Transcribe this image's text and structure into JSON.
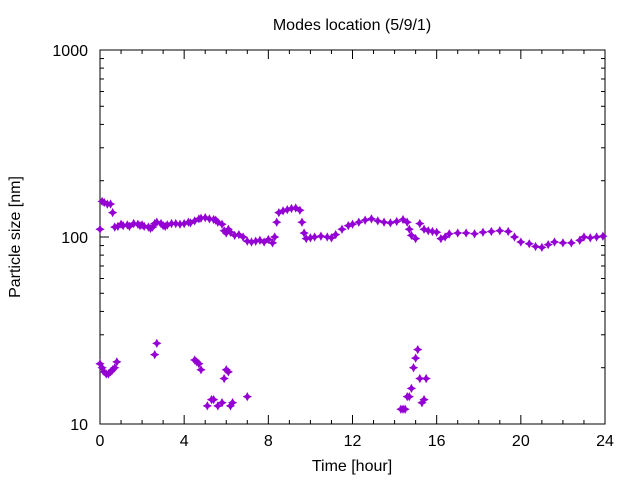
{
  "chart_data": {
    "type": "scatter",
    "title": "Modes location (5/9/1)",
    "xlabel": "Time [hour]",
    "ylabel": "Particle size [nm]",
    "x_range": [
      0,
      24
    ],
    "y_range": [
      10,
      1000
    ],
    "y_scale": "log",
    "x_ticks": [
      0,
      4,
      8,
      12,
      16,
      20,
      24
    ],
    "x_tick_labels": [
      "0",
      "4",
      "8",
      "12",
      "16",
      "20",
      "24"
    ],
    "y_ticks": [
      10,
      100,
      1000
    ],
    "y_tick_labels": [
      "10",
      "100",
      "1000"
    ],
    "grid": false,
    "marker_color": "#9400d3",
    "series": [
      {
        "points": [
          [
            0.0,
            110
          ],
          [
            0.1,
            155
          ],
          [
            0.2,
            153
          ],
          [
            0.35,
            150
          ],
          [
            0.5,
            150
          ],
          [
            0.6,
            135
          ],
          [
            0.7,
            113
          ],
          [
            0.85,
            114
          ],
          [
            1.0,
            117
          ],
          [
            1.1,
            115
          ],
          [
            1.3,
            116
          ],
          [
            1.4,
            114
          ],
          [
            1.6,
            118
          ],
          [
            1.8,
            117
          ],
          [
            1.9,
            115
          ],
          [
            2.0,
            116
          ],
          [
            2.1,
            114
          ],
          [
            2.3,
            113
          ],
          [
            2.4,
            111
          ],
          [
            2.5,
            113
          ],
          [
            2.6,
            118
          ],
          [
            2.7,
            120
          ],
          [
            2.9,
            118
          ],
          [
            3.0,
            115
          ],
          [
            3.1,
            114
          ],
          [
            3.2,
            116
          ],
          [
            3.4,
            118
          ],
          [
            3.6,
            118
          ],
          [
            3.8,
            117
          ],
          [
            4.0,
            118
          ],
          [
            4.2,
            120
          ],
          [
            4.3,
            119
          ],
          [
            4.5,
            122
          ],
          [
            4.7,
            125
          ],
          [
            4.8,
            126
          ],
          [
            5.0,
            127
          ],
          [
            5.2,
            125
          ],
          [
            5.4,
            124
          ],
          [
            5.5,
            123
          ],
          [
            5.6,
            120
          ],
          [
            5.8,
            117
          ],
          [
            5.9,
            108
          ],
          [
            6.0,
            105
          ],
          [
            6.1,
            110
          ],
          [
            6.2,
            106
          ],
          [
            6.4,
            102
          ],
          [
            6.6,
            103
          ],
          [
            6.8,
            100
          ],
          [
            7.0,
            95
          ],
          [
            7.2,
            94
          ],
          [
            7.4,
            95
          ],
          [
            7.6,
            96
          ],
          [
            7.8,
            94
          ],
          [
            8.0,
            97
          ],
          [
            8.2,
            93
          ],
          [
            8.3,
            100
          ],
          [
            8.4,
            120
          ],
          [
            8.5,
            135
          ],
          [
            8.7,
            138
          ],
          [
            8.9,
            140
          ],
          [
            9.1,
            142
          ],
          [
            9.3,
            143
          ],
          [
            9.5,
            139
          ],
          [
            9.6,
            120
          ],
          [
            9.7,
            105
          ],
          [
            9.8,
            98
          ],
          [
            10.0,
            99
          ],
          [
            10.2,
            100
          ],
          [
            10.5,
            101
          ],
          [
            10.8,
            100
          ],
          [
            11.0,
            99
          ],
          [
            11.2,
            103
          ],
          [
            11.5,
            110
          ],
          [
            11.8,
            115
          ],
          [
            12.0,
            117
          ],
          [
            12.3,
            120
          ],
          [
            12.6,
            123
          ],
          [
            12.9,
            125
          ],
          [
            13.2,
            122
          ],
          [
            13.5,
            120
          ],
          [
            13.8,
            119
          ],
          [
            14.1,
            121
          ],
          [
            14.4,
            124
          ],
          [
            14.6,
            120
          ],
          [
            14.7,
            110
          ],
          [
            14.8,
            102
          ],
          [
            15.0,
            98
          ],
          [
            15.2,
            118
          ],
          [
            15.4,
            110
          ],
          [
            15.6,
            108
          ],
          [
            15.8,
            107
          ],
          [
            16.0,
            106
          ],
          [
            16.2,
            98
          ],
          [
            16.4,
            100
          ],
          [
            16.6,
            104
          ],
          [
            17.0,
            105
          ],
          [
            17.4,
            105
          ],
          [
            17.8,
            104
          ],
          [
            18.2,
            106
          ],
          [
            18.6,
            107
          ],
          [
            19.0,
            108
          ],
          [
            19.4,
            107
          ],
          [
            19.7,
            100
          ],
          [
            20.0,
            94
          ],
          [
            20.4,
            92
          ],
          [
            20.7,
            89
          ],
          [
            21.0,
            88
          ],
          [
            21.3,
            91
          ],
          [
            21.6,
            94
          ],
          [
            22.0,
            93
          ],
          [
            22.4,
            93
          ],
          [
            22.8,
            96
          ],
          [
            23.0,
            100
          ],
          [
            23.3,
            99
          ],
          [
            23.6,
            100
          ],
          [
            23.9,
            101
          ],
          [
            0.0,
            21
          ],
          [
            0.1,
            20
          ],
          [
            0.2,
            19
          ],
          [
            0.3,
            18.5
          ],
          [
            0.4,
            18.5
          ],
          [
            0.5,
            19
          ],
          [
            0.6,
            19.5
          ],
          [
            0.7,
            20
          ],
          [
            0.8,
            21.5
          ],
          [
            2.6,
            23.5
          ],
          [
            2.7,
            27
          ],
          [
            4.5,
            22
          ],
          [
            4.6,
            21.5
          ],
          [
            4.7,
            21
          ],
          [
            4.8,
            19.5
          ],
          [
            5.1,
            12.5
          ],
          [
            5.3,
            13.5
          ],
          [
            5.4,
            13.5
          ],
          [
            5.6,
            12.5
          ],
          [
            5.8,
            13
          ],
          [
            5.9,
            17.5
          ],
          [
            6.0,
            19.5
          ],
          [
            6.1,
            19
          ],
          [
            6.2,
            12.5
          ],
          [
            6.3,
            13
          ],
          [
            7.0,
            14
          ],
          [
            14.3,
            12
          ],
          [
            14.4,
            12
          ],
          [
            14.5,
            12
          ],
          [
            14.6,
            14
          ],
          [
            14.7,
            14
          ],
          [
            14.8,
            15.5
          ],
          [
            14.9,
            20
          ],
          [
            15.0,
            22.5
          ],
          [
            15.1,
            25
          ],
          [
            15.2,
            17.5
          ],
          [
            15.3,
            13
          ],
          [
            15.4,
            13.5
          ],
          [
            15.5,
            17.5
          ]
        ]
      }
    ]
  }
}
